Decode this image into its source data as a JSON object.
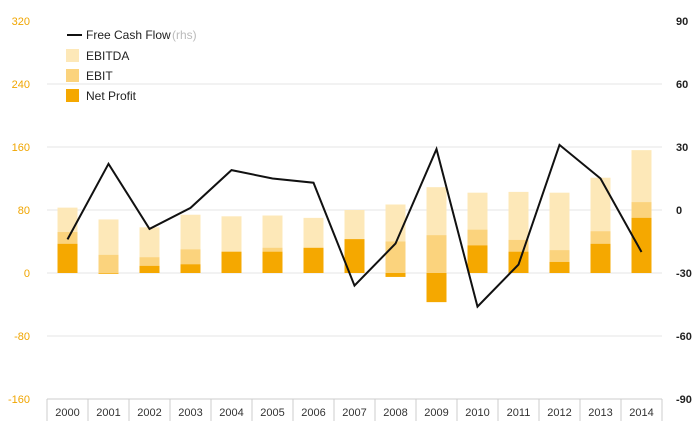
{
  "chart_data": {
    "type": "bar",
    "categories": [
      "2000",
      "2001",
      "2002",
      "2003",
      "2004",
      "2005",
      "2006",
      "2007",
      "2008",
      "2009",
      "2010",
      "2011",
      "2012",
      "2013",
      "2014"
    ],
    "series": [
      {
        "name": "EBITDA",
        "kind": "bar",
        "axis": "left",
        "color": "#fde8b8",
        "values": [
          83,
          68,
          58,
          74,
          72,
          73,
          70,
          80,
          87,
          109,
          102,
          103,
          102,
          121,
          156
        ]
      },
      {
        "name": "EBIT",
        "kind": "bar",
        "axis": "left",
        "color": "#fbd37d",
        "values": [
          52,
          23,
          20,
          30,
          27,
          32,
          31,
          40,
          40,
          48,
          55,
          42,
          29,
          53,
          90
        ]
      },
      {
        "name": "Net Profit",
        "kind": "bar",
        "axis": "left",
        "color": "#f5a800",
        "values": [
          37,
          -1,
          9,
          11,
          27,
          27,
          32,
          43,
          -5,
          -37,
          35,
          27,
          14,
          37,
          70
        ]
      },
      {
        "name": "Free Cash Flow",
        "note": "(rhs)",
        "kind": "line",
        "axis": "right",
        "color": "#111111",
        "values": [
          -14,
          22,
          -9,
          1,
          19,
          15,
          13,
          -36,
          -16,
          29,
          -46,
          -26,
          31,
          15,
          -20
        ]
      }
    ],
    "ylim_left": [
      -160,
      320
    ],
    "ylim_right": [
      -90,
      90
    ],
    "yticks_left": [
      "320",
      "240",
      "160",
      "80",
      "0",
      "-80",
      "-160"
    ],
    "yticks_right": [
      "90",
      "60",
      "30",
      "0",
      "-30",
      "-60",
      "-90"
    ],
    "grid": true,
    "legend": "top-left"
  }
}
